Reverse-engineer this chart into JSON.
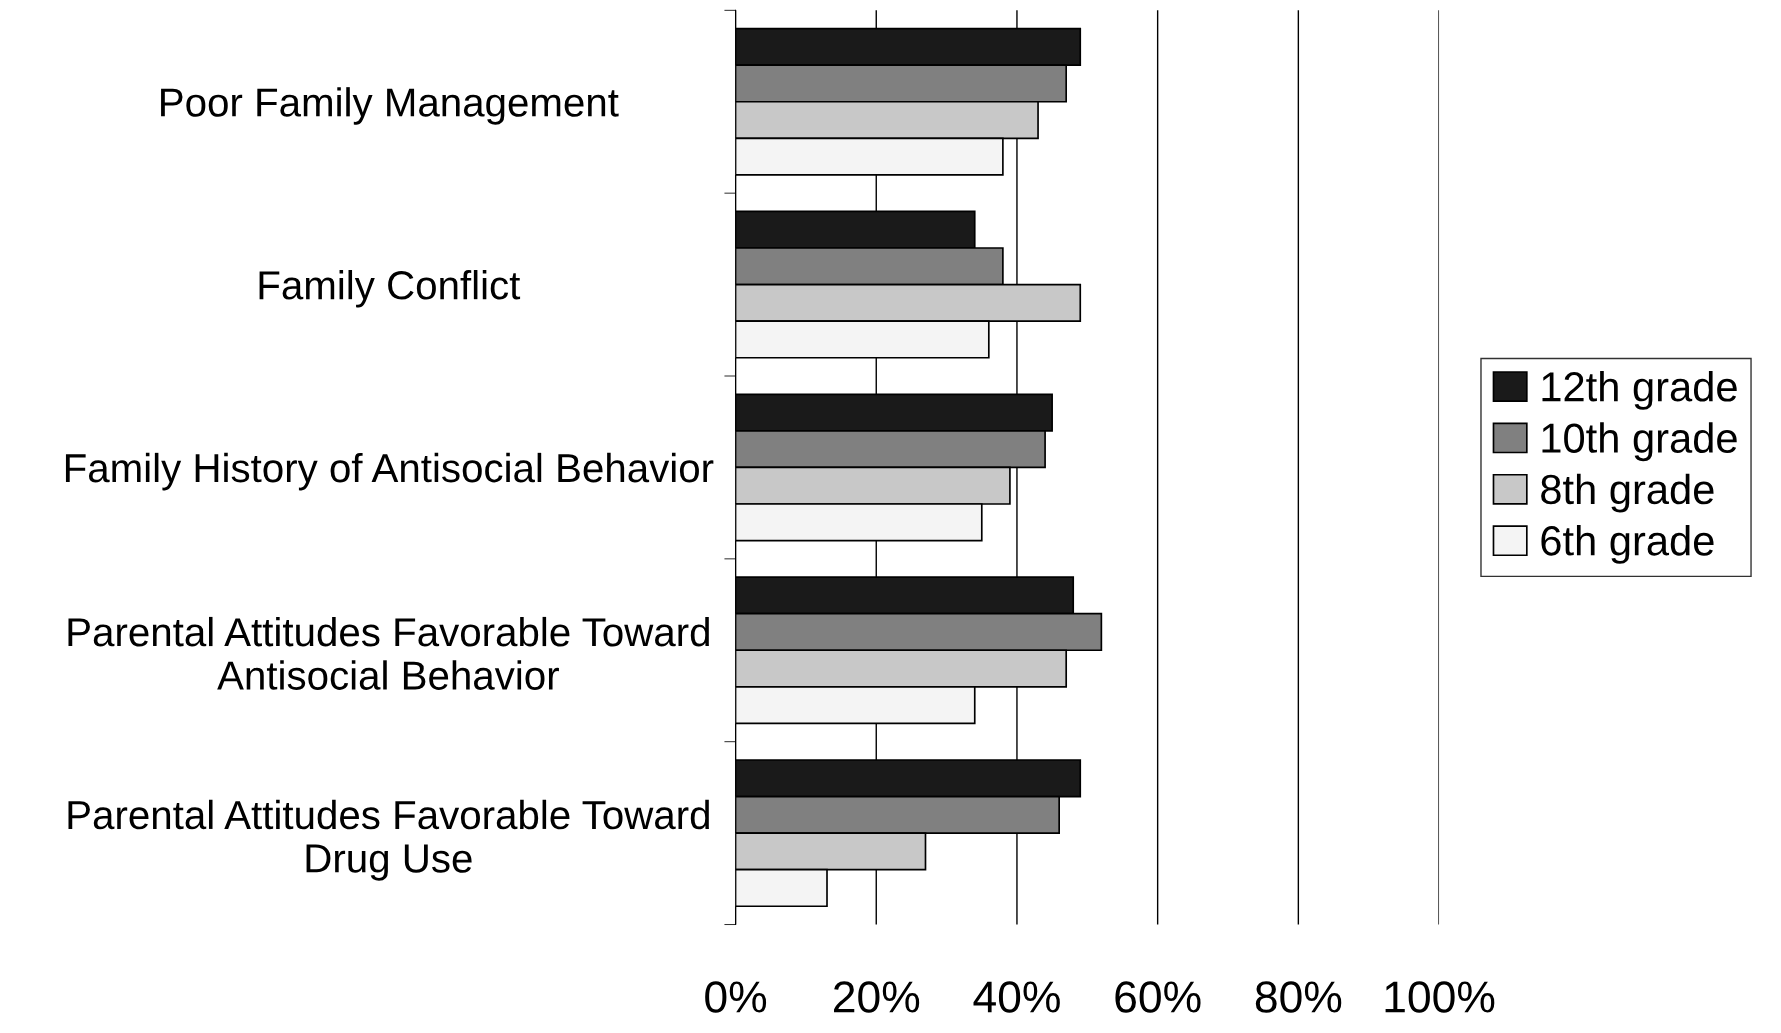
{
  "chart_data": {
    "type": "bar",
    "orientation": "horizontal",
    "categories": [
      "Poor Family Management",
      "Family Conflict",
      "Family History of Antisocial Behavior",
      "Parental Attitudes Favorable Toward\nAntisocial Behavior",
      "Parental Attitudes Favorable Toward\nDrug Use"
    ],
    "series": [
      {
        "name": "12th grade",
        "color": "#1a1a1a",
        "values": [
          49,
          34,
          45,
          48,
          49
        ]
      },
      {
        "name": "10th grade",
        "color": "#808080",
        "values": [
          47,
          38,
          44,
          52,
          46
        ]
      },
      {
        "name": "8th grade",
        "color": "#c8c8c8",
        "values": [
          43,
          49,
          39,
          47,
          27
        ]
      },
      {
        "name": "6th grade",
        "color": "#f4f4f4",
        "values": [
          38,
          36,
          35,
          34,
          13
        ]
      }
    ],
    "xlim": [
      0,
      100
    ],
    "xticks": [
      {
        "value": 0,
        "label": "0%"
      },
      {
        "value": 20,
        "label": "20%"
      },
      {
        "value": 40,
        "label": "40%"
      },
      {
        "value": 60,
        "label": "60%"
      },
      {
        "value": 80,
        "label": "80%"
      },
      {
        "value": 100,
        "label": "100%"
      }
    ],
    "grid": "x",
    "legend": "right"
  }
}
